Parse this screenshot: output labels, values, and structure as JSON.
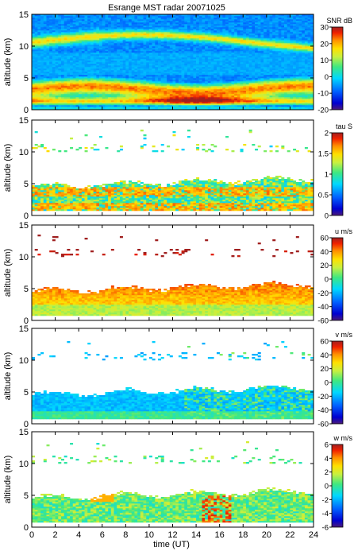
{
  "title": "Esrange MST radar 20071025",
  "chart_data": [
    {
      "type": "heatmap",
      "quantity": "SNR",
      "ylabel": "altitude (km)",
      "ylim": [
        0,
        15
      ],
      "yticks": [
        "0",
        "5",
        "10",
        "15"
      ],
      "xlim": [
        0,
        24
      ],
      "colorbar": {
        "label": "SNR dB",
        "range": [
          -20,
          30
        ],
        "ticks": [
          "30",
          "20",
          "10",
          "0",
          "-10",
          "-20"
        ]
      },
      "features": [
        {
          "altitude_km": 10.6,
          "value": 4
        },
        {
          "altitude_km": 3.2,
          "value": 24
        },
        {
          "altitude_km": 1.6,
          "value": 20
        }
      ]
    },
    {
      "type": "heatmap",
      "quantity": "tau",
      "ylabel": "altitude (km)",
      "ylim": [
        0,
        15
      ],
      "yticks": [
        "0",
        "5",
        "10",
        "15"
      ],
      "xlim": [
        0,
        24
      ],
      "colorbar": {
        "label": "tau S",
        "range": [
          0,
          2
        ],
        "ticks": [
          "2",
          "1.5",
          "1",
          "0.5",
          "0"
        ]
      },
      "features": [
        {
          "altitude_km": 3.5,
          "value": 1.5
        }
      ]
    },
    {
      "type": "heatmap",
      "quantity": "u",
      "ylabel": "altitude (km)",
      "ylim": [
        0,
        15
      ],
      "yticks": [
        "0",
        "5",
        "10",
        "15"
      ],
      "xlim": [
        0,
        24
      ],
      "colorbar": {
        "label": "u m/s",
        "range": [
          -60,
          60
        ],
        "ticks": [
          "60",
          "40",
          "20",
          "0",
          "-20",
          "-40",
          "-60"
        ]
      },
      "features": [
        {
          "altitude_km": 3.5,
          "value": 28
        }
      ]
    },
    {
      "type": "heatmap",
      "quantity": "v",
      "ylabel": "altitude (km)",
      "ylim": [
        0,
        15
      ],
      "yticks": [
        "0",
        "5",
        "10",
        "15"
      ],
      "xlim": [
        0,
        24
      ],
      "colorbar": {
        "label": "v m/s",
        "range": [
          -60,
          60
        ],
        "ticks": [
          "60",
          "40",
          "20",
          "0",
          "-20",
          "-40",
          "-60"
        ]
      },
      "features": [
        {
          "altitude_km": 3.0,
          "value": -25
        }
      ]
    },
    {
      "type": "heatmap",
      "quantity": "w",
      "ylabel": "altitude (km)",
      "ylim": [
        0,
        15
      ],
      "yticks": [
        "0",
        "5",
        "10",
        "15"
      ],
      "xlim": [
        0,
        24
      ],
      "xlabel": "time (UT)",
      "xticks": [
        "0",
        "2",
        "4",
        "6",
        "8",
        "10",
        "12",
        "14",
        "16",
        "18",
        "20",
        "22",
        "24"
      ],
      "colorbar": {
        "label": "w m/s",
        "range": [
          -6,
          6
        ],
        "ticks": [
          "6",
          "4",
          "2",
          "0",
          "-2",
          "-4",
          "-6"
        ]
      },
      "features": [
        {
          "altitude_km": 3.0,
          "value": 0
        }
      ]
    }
  ]
}
